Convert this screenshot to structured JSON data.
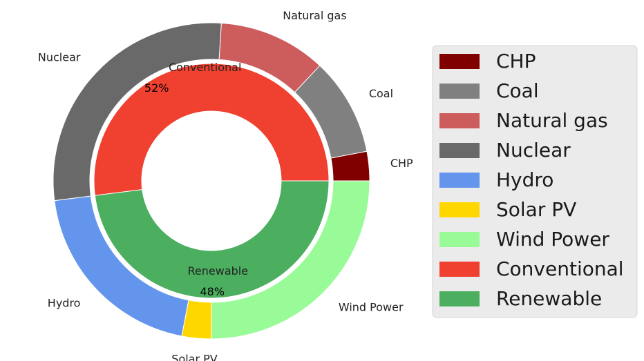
{
  "chart_data": {
    "type": "pie",
    "subtype": "nested-donut",
    "outer_ring": {
      "categories": [
        "CHP",
        "Coal",
        "Natural gas",
        "Nuclear",
        "Hydro",
        "Solar PV",
        "Wind Power"
      ],
      "values": [
        3,
        10,
        11,
        28,
        20,
        3,
        25
      ],
      "colors": [
        "#800000",
        "#808080",
        "#cd5c5c",
        "#696969",
        "#6495ed",
        "#ffd700",
        "#98fb98"
      ]
    },
    "inner_ring": {
      "categories": [
        "Conventional",
        "Renewable"
      ],
      "values": [
        52,
        48
      ],
      "percent_labels": [
        "52%",
        "48%"
      ],
      "colors": [
        "#f04030",
        "#4caf60"
      ]
    },
    "legend": {
      "placement": "right",
      "entries": [
        {
          "label": "CHP",
          "color": "#800000"
        },
        {
          "label": "Coal",
          "color": "#808080"
        },
        {
          "label": "Natural gas",
          "color": "#cd5c5c"
        },
        {
          "label": "Nuclear",
          "color": "#696969"
        },
        {
          "label": "Hydro",
          "color": "#6495ed"
        },
        {
          "label": "Solar PV",
          "color": "#ffd700"
        },
        {
          "label": "Wind Power",
          "color": "#98fb98"
        },
        {
          "label": "Conventional",
          "color": "#f04030"
        },
        {
          "label": "Renewable",
          "color": "#4caf60"
        }
      ]
    },
    "title": "",
    "start_angle_deg": 0,
    "direction": "counterclockwise"
  }
}
